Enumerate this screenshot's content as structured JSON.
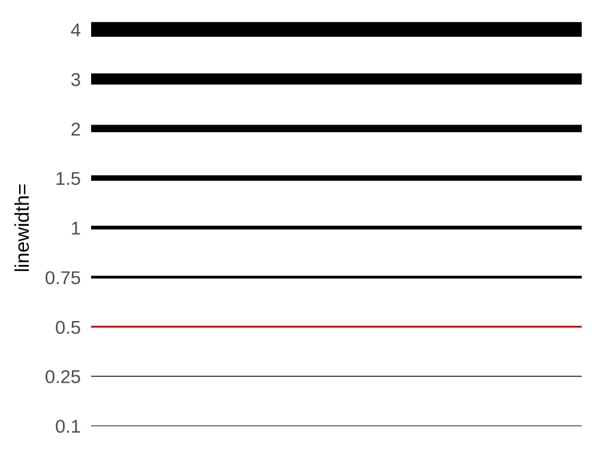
{
  "chart_data": {
    "type": "line",
    "title": "",
    "xlabel": "",
    "ylabel": "linewidth=",
    "categories": [
      "0.1",
      "0.25",
      "0.5",
      "0.75",
      "1",
      "1.5",
      "2",
      "3",
      "4"
    ],
    "values": [
      0.1,
      0.25,
      0.5,
      0.75,
      1,
      1.5,
      2,
      3,
      4
    ],
    "highlight": "0.5",
    "colors": {
      "default": "#000000",
      "highlight": "#cc0000"
    },
    "grid": false,
    "legend": "none"
  }
}
